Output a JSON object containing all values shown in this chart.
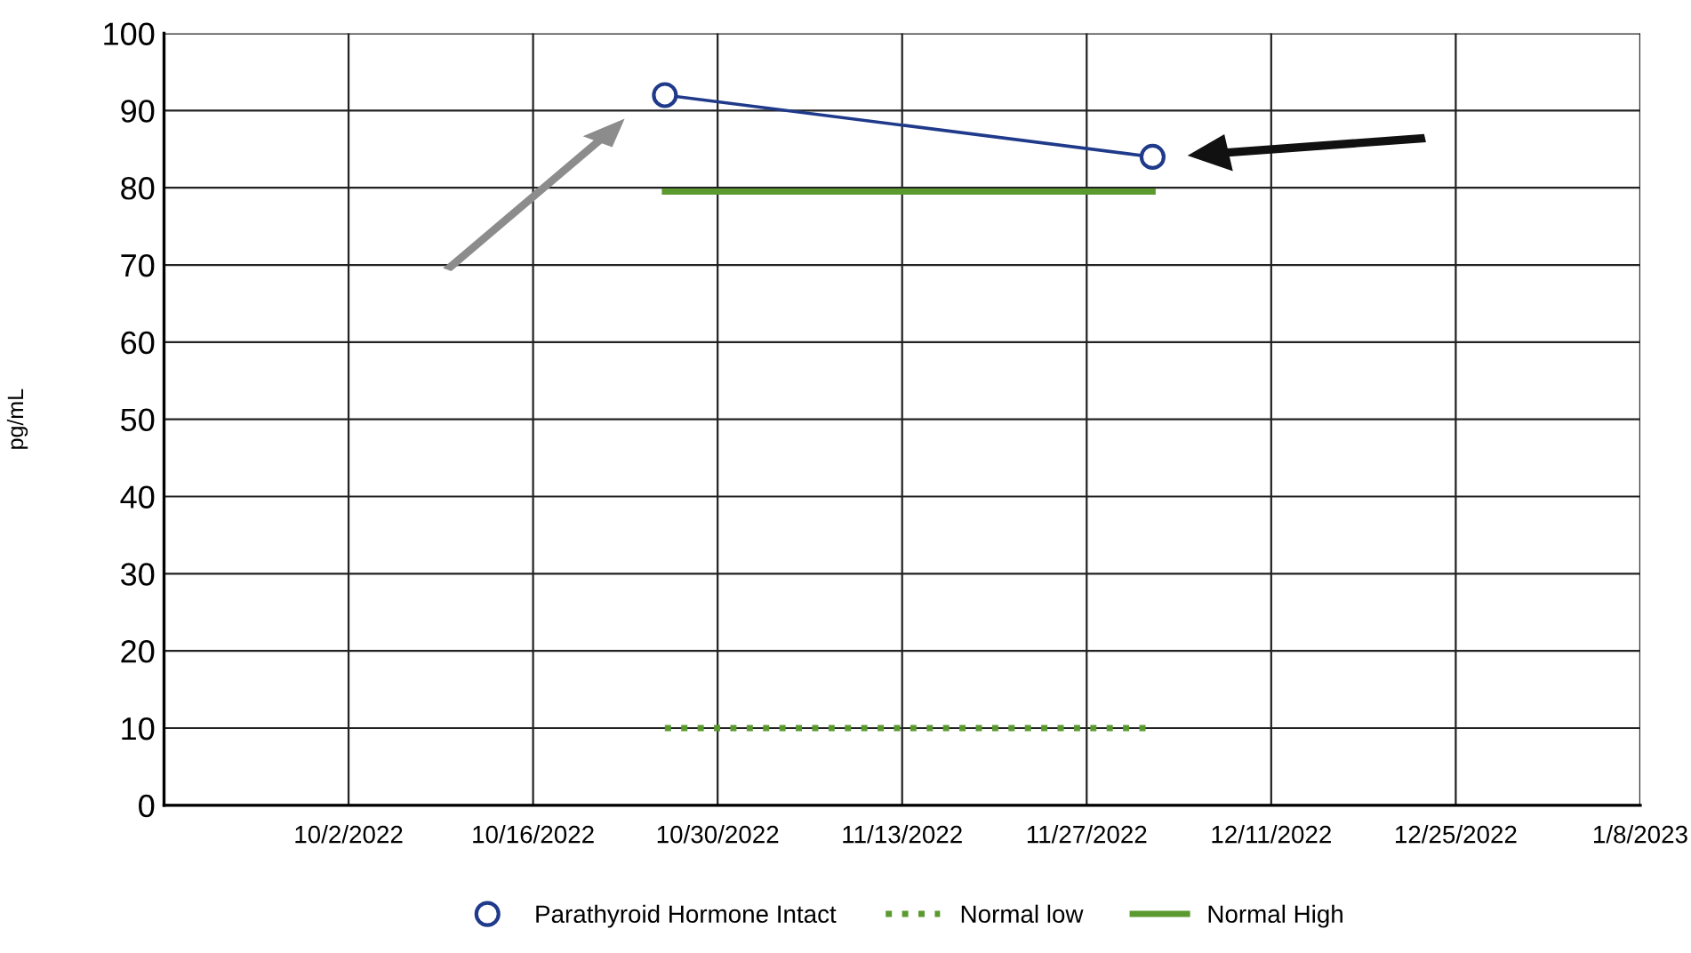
{
  "chart_data": {
    "type": "line",
    "ylabel": "pg/mL",
    "series": [
      {
        "name": "Parathyroid Hormone Intact",
        "color": "#1f3a8a",
        "x": [
          "2022-10-26",
          "2022-12-02"
        ],
        "values": [
          92,
          84
        ],
        "marker": "circle",
        "line_style": "solid"
      },
      {
        "name": "Normal low",
        "color": "#5a9a2f",
        "x": [
          "2022-10-26",
          "2022-12-02"
        ],
        "values": [
          10,
          10
        ],
        "marker": "none",
        "line_style": "dotted"
      },
      {
        "name": "Normal High",
        "color": "#5a9a2f",
        "x": [
          "2022-10-26",
          "2022-12-02"
        ],
        "values": [
          79.5,
          79.5
        ],
        "marker": "none",
        "line_style": "solid"
      }
    ],
    "xlim": [
      "2022-09-18",
      "2023-01-08"
    ],
    "xticks": [
      {
        "value": "2022-10-02",
        "label": "10/2/2022"
      },
      {
        "value": "2022-10-16",
        "label": "10/16/2022"
      },
      {
        "value": "2022-10-30",
        "label": "10/30/2022"
      },
      {
        "value": "2022-11-13",
        "label": "11/13/2022"
      },
      {
        "value": "2022-11-27",
        "label": "11/27/2022"
      },
      {
        "value": "2022-12-11",
        "label": "12/11/2022"
      },
      {
        "value": "2022-12-25",
        "label": "12/25/2022"
      },
      {
        "value": "2023-01-08",
        "label": "1/8/2023"
      }
    ],
    "ylim": [
      0,
      100
    ],
    "yticks": [
      0,
      10,
      20,
      30,
      40,
      50,
      60,
      70,
      80,
      90,
      100
    ],
    "grid": true,
    "legend": "bottom"
  }
}
